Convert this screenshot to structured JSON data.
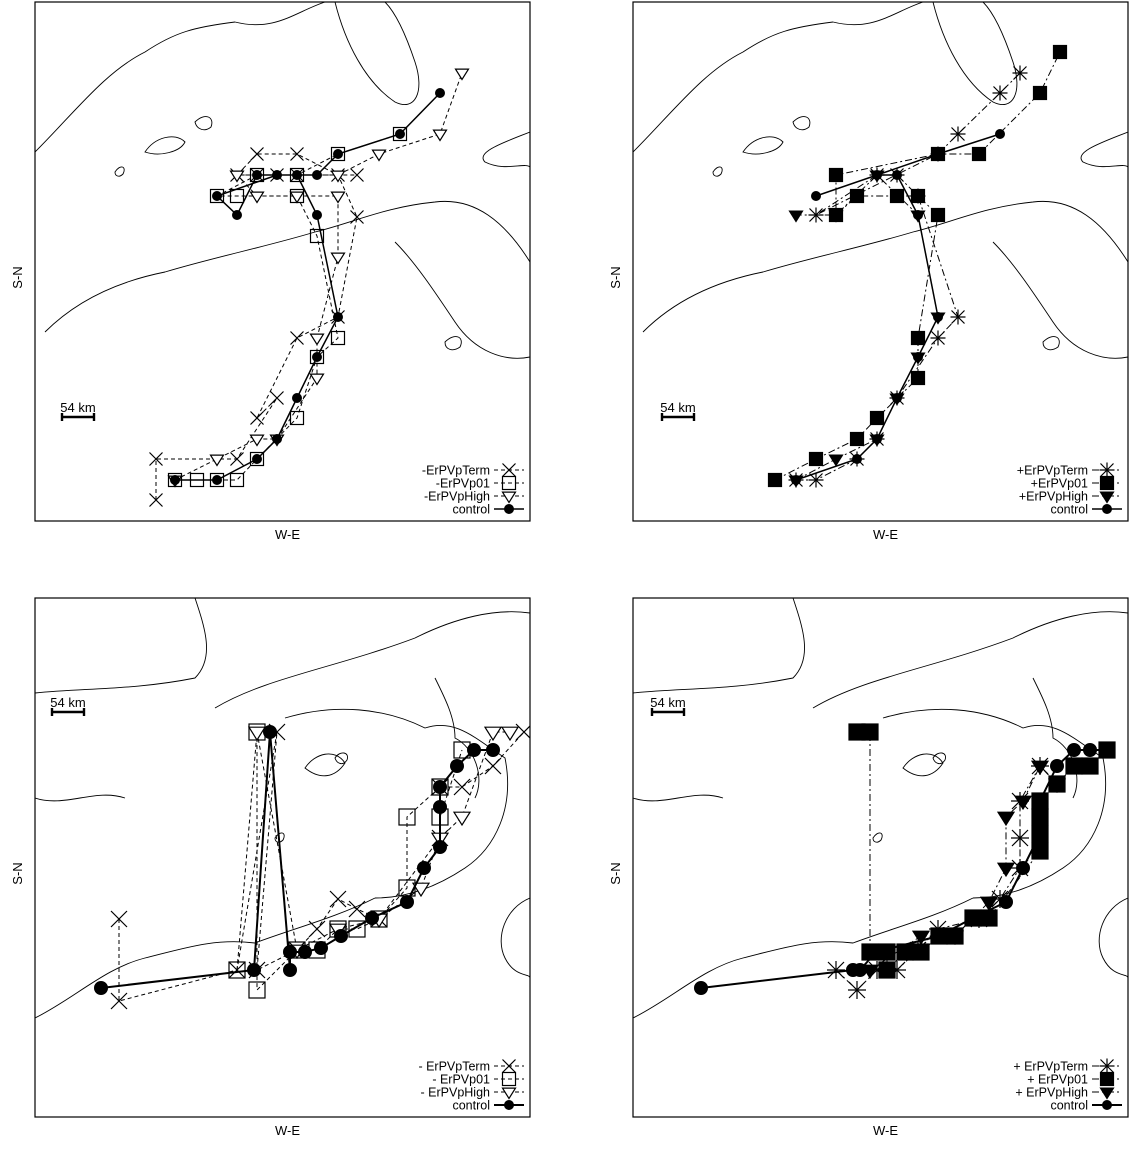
{
  "chart_data": [
    {
      "type": "scatter",
      "panel": "top-left",
      "xlabel": "W-E",
      "ylabel": "S-N",
      "scale_label": "54 km",
      "legend_position": "bottom-right",
      "series": [
        {
          "name": "-ErPVpTerm",
          "marker": "x",
          "line": "dash",
          "points": [
            [
              156,
              500
            ],
            [
              156,
              459
            ],
            [
              237,
              459
            ],
            [
              277,
              398
            ],
            [
              257,
              418
            ],
            [
              297,
              338
            ],
            [
              338,
              317
            ],
            [
              357,
              217
            ],
            [
              338,
              175
            ],
            [
              297,
              154
            ],
            [
              257,
              154
            ],
            [
              237,
              175
            ],
            [
              257,
              175
            ],
            [
              277,
              175
            ],
            [
              297,
              175
            ],
            [
              357,
              175
            ]
          ]
        },
        {
          "name": "-ErPVp01",
          "marker": "square-open",
          "line": "dash",
          "points": [
            [
              175,
              480
            ],
            [
              197,
              480
            ],
            [
              217,
              480
            ],
            [
              237,
              480
            ],
            [
              257,
              459
            ],
            [
              297,
              418
            ],
            [
              317,
              357
            ],
            [
              338,
              338
            ],
            [
              317,
              236
            ],
            [
              297,
              196
            ],
            [
              237,
              196
            ],
            [
              217,
              196
            ],
            [
              257,
              175
            ],
            [
              297,
              175
            ],
            [
              338,
              154
            ],
            [
              400,
              134
            ]
          ]
        },
        {
          "name": "-ErPVpHigh",
          "marker": "triangle-open",
          "line": "dash",
          "points": [
            [
              175,
              480
            ],
            [
              217,
              459
            ],
            [
              257,
              439
            ],
            [
              277,
              439
            ],
            [
              317,
              378
            ],
            [
              317,
              338
            ],
            [
              338,
              257
            ],
            [
              338,
              196
            ],
            [
              297,
              196
            ],
            [
              257,
              196
            ],
            [
              237,
              175
            ],
            [
              338,
              175
            ],
            [
              379,
              154
            ],
            [
              440,
              134
            ],
            [
              462,
              73
            ]
          ]
        },
        {
          "name": "control",
          "marker": "dot",
          "line": "solid",
          "points": [
            [
              175,
              480
            ],
            [
              217,
              480
            ],
            [
              257,
              459
            ],
            [
              277,
              439
            ],
            [
              297,
              398
            ],
            [
              317,
              357
            ],
            [
              338,
              317
            ],
            [
              317,
              215
            ],
            [
              297,
              175
            ],
            [
              257,
              175
            ],
            [
              237,
              215
            ],
            [
              217,
              196
            ],
            [
              277,
              175
            ],
            [
              317,
              175
            ],
            [
              338,
              154
            ],
            [
              400,
              134
            ],
            [
              440,
              93
            ]
          ]
        }
      ]
    },
    {
      "type": "scatter",
      "panel": "top-right",
      "xlabel": "W-E",
      "ylabel": "S-N",
      "scale_label": "54 km",
      "legend_position": "bottom-right",
      "series": [
        {
          "name": "+ErPVpTerm",
          "marker": "asterisk",
          "line": "dashdot",
          "points": [
            [
              796,
              480
            ],
            [
              816,
              480
            ],
            [
              857,
              459
            ],
            [
              877,
              439
            ],
            [
              897,
              398
            ],
            [
              938,
              338
            ],
            [
              958,
              317
            ],
            [
              918,
              196
            ],
            [
              897,
              175
            ],
            [
              877,
              175
            ],
            [
              816,
              215
            ],
            [
              938,
              154
            ],
            [
              958,
              134
            ],
            [
              1000,
              93
            ],
            [
              1020,
              73
            ]
          ]
        },
        {
          "name": "+ErPVp01",
          "marker": "square-filled",
          "line": "dashdot",
          "points": [
            [
              775,
              480
            ],
            [
              816,
              459
            ],
            [
              857,
              439
            ],
            [
              877,
              418
            ],
            [
              918,
              378
            ],
            [
              918,
              338
            ],
            [
              938,
              215
            ],
            [
              918,
              196
            ],
            [
              897,
              196
            ],
            [
              857,
              196
            ],
            [
              836,
              215
            ],
            [
              836,
              175
            ],
            [
              938,
              154
            ],
            [
              979,
              154
            ],
            [
              1040,
              93
            ],
            [
              1060,
              52
            ]
          ]
        },
        {
          "name": "+ErPVpHigh",
          "marker": "triangle-filled",
          "line": "dashdot",
          "points": [
            [
              796,
              480
            ],
            [
              836,
              459
            ],
            [
              877,
              439
            ],
            [
              897,
              398
            ],
            [
              918,
              357
            ],
            [
              938,
              317
            ],
            [
              918,
              215
            ],
            [
              877,
              175
            ],
            [
              836,
              215
            ],
            [
              796,
              215
            ]
          ]
        },
        {
          "name": "control",
          "marker": "dot",
          "line": "solid",
          "points": [
            [
              796,
              480
            ],
            [
              857,
              459
            ],
            [
              877,
              439
            ],
            [
              897,
              398
            ],
            [
              918,
              357
            ],
            [
              938,
              317
            ],
            [
              918,
              215
            ],
            [
              897,
              175
            ],
            [
              877,
              175
            ],
            [
              816,
              196
            ],
            [
              938,
              154
            ],
            [
              1000,
              134
            ]
          ]
        }
      ]
    },
    {
      "type": "scatter",
      "panel": "bottom-left",
      "xlabel": "W-E",
      "ylabel": "S-N",
      "scale_label": "54 km",
      "legend_position": "bottom-right",
      "series": [
        {
          "name": "- ErPVpTerm",
          "marker": "x",
          "line": "dash",
          "points": [
            [
              119,
              919
            ],
            [
              119,
              1001
            ],
            [
              237,
              970
            ],
            [
              277,
              732
            ],
            [
              257,
              970
            ],
            [
              297,
              950
            ],
            [
              317,
              929
            ],
            [
              338,
              899
            ],
            [
              357,
              909
            ],
            [
              379,
              919
            ],
            [
              440,
              838
            ],
            [
              440,
              787
            ],
            [
              462,
              787
            ],
            [
              493,
              766
            ],
            [
              524,
              732
            ]
          ]
        },
        {
          "name": "- ErPVp01",
          "marker": "square-open",
          "line": "dash",
          "points": [
            [
              237,
              970
            ],
            [
              257,
              732
            ],
            [
              257,
              990
            ],
            [
              297,
              950
            ],
            [
              317,
              950
            ],
            [
              338,
              929
            ],
            [
              357,
              929
            ],
            [
              379,
              919
            ],
            [
              407,
              888
            ],
            [
              407,
              817
            ],
            [
              440,
              787
            ],
            [
              440,
              817
            ],
            [
              462,
              750
            ]
          ]
        },
        {
          "name": "- ErPVpHigh",
          "marker": "triangle-open",
          "line": "dash",
          "points": [
            [
              257,
              732
            ],
            [
              297,
              950
            ],
            [
              338,
              929
            ],
            [
              379,
              919
            ],
            [
              421,
              888
            ],
            [
              440,
              838
            ],
            [
              462,
              817
            ],
            [
              493,
              732
            ],
            [
              510,
              732
            ]
          ]
        },
        {
          "name": "control",
          "marker": "dot",
          "line": "solid",
          "points": [
            [
              101,
              988
            ],
            [
              254,
              970
            ],
            [
              270,
              732
            ],
            [
              290,
              970
            ],
            [
              290,
              952
            ],
            [
              305,
              952
            ],
            [
              321,
              948
            ],
            [
              341,
              936
            ],
            [
              372,
              918
            ],
            [
              407,
              902
            ],
            [
              424,
              868
            ],
            [
              440,
              847
            ],
            [
              440,
              807
            ],
            [
              440,
              787
            ],
            [
              457,
              766
            ],
            [
              474,
              750
            ],
            [
              493,
              750
            ]
          ]
        }
      ]
    },
    {
      "type": "scatter",
      "panel": "bottom-right",
      "xlabel": "W-E",
      "ylabel": "S-N",
      "scale_label": "54 km",
      "legend_position": "bottom-right",
      "series": [
        {
          "name": "+ ErPVpTerm",
          "marker": "asterisk",
          "line": "dashdot",
          "points": [
            [
              836,
              970
            ],
            [
              857,
              990
            ],
            [
              877,
              970
            ],
            [
              897,
              970
            ],
            [
              918,
              950
            ],
            [
              938,
              929
            ],
            [
              979,
              919
            ],
            [
              1000,
              899
            ],
            [
              1020,
              868
            ],
            [
              1020,
              838
            ],
            [
              1020,
              801
            ],
            [
              1040,
              766
            ]
          ]
        },
        {
          "name": "+ ErPVp01",
          "marker": "square-filled",
          "line": "dashdot",
          "points": [
            [
              857,
              732
            ],
            [
              870,
              732
            ],
            [
              870,
              952
            ],
            [
              887,
              952
            ],
            [
              887,
              970
            ],
            [
              905,
              952
            ],
            [
              921,
              952
            ],
            [
              939,
              936
            ],
            [
              955,
              936
            ],
            [
              973,
              918
            ],
            [
              989,
              918
            ],
            [
              1040,
              851
            ],
            [
              1040,
              834
            ],
            [
              1040,
              817
            ],
            [
              1040,
              801
            ],
            [
              1057,
              784
            ],
            [
              1074,
              766
            ],
            [
              1090,
              766
            ],
            [
              1107,
              750
            ]
          ]
        },
        {
          "name": "+ ErPVpHigh",
          "marker": "triangle-filled",
          "line": "dashdot",
          "points": [
            [
              870,
              970
            ],
            [
              921,
              936
            ],
            [
              955,
              936
            ],
            [
              989,
              902
            ],
            [
              1006,
              868
            ],
            [
              1006,
              817
            ],
            [
              1023,
              801
            ],
            [
              1040,
              766
            ],
            [
              1057,
              784
            ]
          ]
        },
        {
          "name": "control",
          "marker": "dot",
          "line": "solid",
          "points": [
            [
              701,
              988
            ],
            [
              853,
              970
            ],
            [
              860,
              970
            ],
            [
              876,
              952
            ],
            [
              939,
              936
            ],
            [
              973,
              918
            ],
            [
              1006,
              902
            ],
            [
              1023,
              868
            ],
            [
              1040,
              834
            ],
            [
              1040,
              817
            ],
            [
              1040,
              801
            ],
            [
              1057,
              766
            ],
            [
              1074,
              750
            ],
            [
              1090,
              750
            ],
            [
              1107,
              750
            ]
          ]
        }
      ]
    }
  ]
}
